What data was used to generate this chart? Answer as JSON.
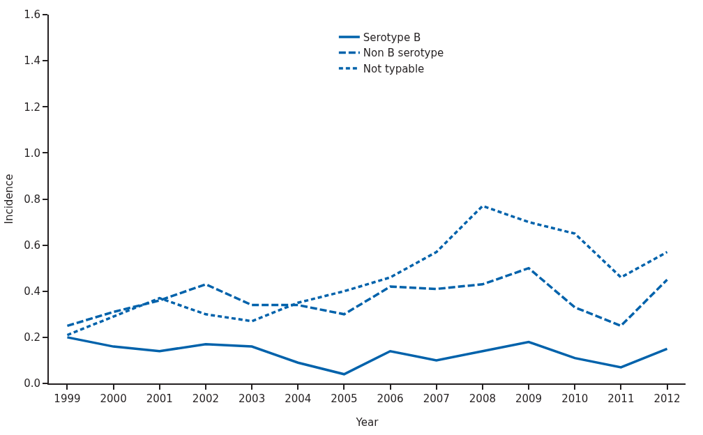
{
  "chart_data": {
    "type": "line",
    "xlabel": "Year",
    "ylabel": "Incidence",
    "x": [
      1999,
      2000,
      2001,
      2002,
      2003,
      2004,
      2005,
      2006,
      2007,
      2008,
      2009,
      2010,
      2011,
      2012
    ],
    "xlim": [
      1998.6,
      2012.4
    ],
    "xticks": [
      1999,
      2000,
      2001,
      2002,
      2003,
      2004,
      2005,
      2006,
      2007,
      2008,
      2009,
      2010,
      2011,
      2012
    ],
    "ylim": [
      0,
      1.6
    ],
    "yticks": [
      {
        "value": 0,
        "label": "0.0"
      },
      {
        "value": 0.2,
        "label": "0.2"
      },
      {
        "value": 0.4,
        "label": "0.4"
      },
      {
        "value": 0.6,
        "label": "0.6"
      },
      {
        "value": 0.8,
        "label": "0.8"
      },
      {
        "value": 1.0,
        "label": "1.0"
      },
      {
        "value": 1.2,
        "label": "1.2"
      },
      {
        "value": 1.4,
        "label": "1.4"
      },
      {
        "value": 1.6,
        "label": "1.6"
      }
    ],
    "legend": "top",
    "marker": "none",
    "series": [
      {
        "name": "Serotype B",
        "color": "#0062ab",
        "line_style": "solid",
        "values": [
          0.2,
          0.16,
          0.14,
          0.17,
          0.16,
          0.09,
          0.04,
          0.14,
          0.1,
          0.14,
          0.18,
          0.11,
          0.07,
          0.15
        ]
      },
      {
        "name": "Non B serotype",
        "color": "#0062ab",
        "line_style": "dashed",
        "values": [
          0.25,
          0.31,
          0.36,
          0.43,
          0.34,
          0.34,
          0.3,
          0.42,
          0.41,
          0.43,
          0.5,
          0.33,
          0.25,
          0.45
        ]
      },
      {
        "name": "Not typable",
        "color": "#0062ab",
        "line_style": "dotted",
        "values": [
          0.21,
          0.29,
          0.37,
          0.3,
          0.27,
          0.35,
          0.4,
          0.46,
          0.57,
          0.77,
          0.7,
          0.65,
          0.46,
          0.57
        ]
      }
    ]
  }
}
